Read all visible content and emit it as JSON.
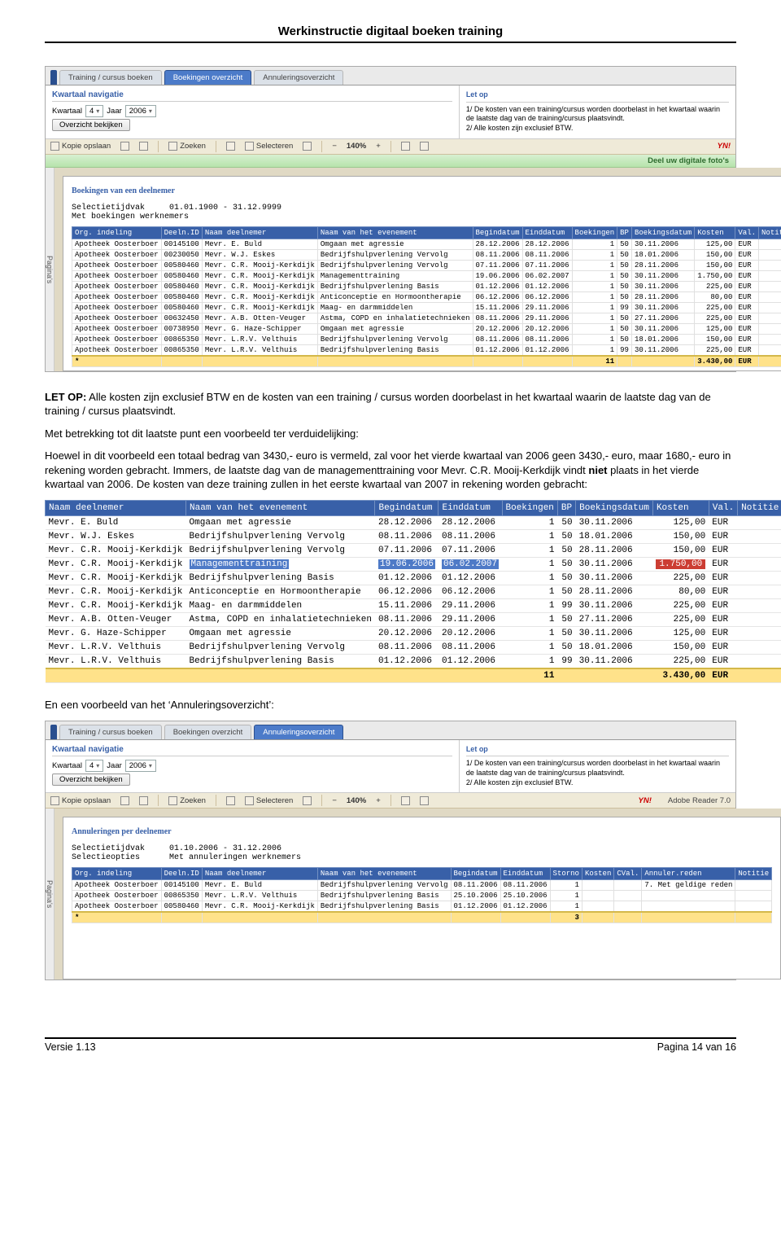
{
  "doc": {
    "title": "Werkinstructie digitaal boeken training",
    "version_label": "Versie 1.13",
    "page_label": "Pagina 14 van 16"
  },
  "app_top": {
    "tabs": [
      "Training / cursus boeken",
      "Boekingen overzicht",
      "Annuleringsoverzicht"
    ],
    "active_index": 1,
    "nav": {
      "heading": "Kwartaal navigatie",
      "kwartaal_label": "Kwartaal",
      "kwartaal_val": "4",
      "jaar_label": "Jaar",
      "jaar_val": "2006",
      "button": "Overzicht bekijken"
    },
    "notice": {
      "heading": "Let op",
      "line1": "1/ De kosten van een training/cursus worden doorbelast in het kwartaal waarin de laatste dag van de training/cursus plaatsvindt.",
      "line2": "2/ Alle kosten zijn exclusief BTW."
    },
    "toolbar": {
      "save": "Kopie opslaan",
      "search": "Zoeken",
      "select": "Selecteren",
      "zoom": "140%",
      "yn": "YN!",
      "share": "Deel uw digitale foto's"
    },
    "sidetab": "Pagina's",
    "report": {
      "title": "Boekingen van een deelnemer",
      "row1_label": "Selectietijdvak",
      "row1_val": "01.01.1900 - 31.12.9999",
      "row2": "Met boekingen werknemers",
      "columns": [
        "Org. indeling",
        "Deeln.ID",
        "Naam deelnemer",
        "Naam van het evenement",
        "Begindatum",
        "Einddatum",
        "Boekingen",
        "BP",
        "Boekingsdatum",
        "Kosten",
        "Val.",
        "Notitie"
      ],
      "rows": [
        [
          "Apotheek Oosterboer",
          "00145100",
          "Mevr. E. Buld",
          "Omgaan met agressie",
          "28.12.2006",
          "28.12.2006",
          "1",
          "50",
          "30.11.2006",
          "125,00",
          "EUR",
          ""
        ],
        [
          "Apotheek Oosterboer",
          "00230050",
          "Mevr. W.J. Eskes",
          "Bedrijfshulpverlening Vervolg",
          "08.11.2006",
          "08.11.2006",
          "1",
          "50",
          "18.01.2006",
          "150,00",
          "EUR",
          ""
        ],
        [
          "Apotheek Oosterboer",
          "00580460",
          "Mevr. C.R. Mooij-Kerkdijk",
          "Bedrijfshulpverlening Vervolg",
          "07.11.2006",
          "07.11.2006",
          "1",
          "50",
          "28.11.2006",
          "150,00",
          "EUR",
          ""
        ],
        [
          "Apotheek Oosterboer",
          "00580460",
          "Mevr. C.R. Mooij-Kerkdijk",
          "Managementtraining",
          "19.06.2006",
          "06.02.2007",
          "1",
          "50",
          "30.11.2006",
          "1.750,00",
          "EUR",
          ""
        ],
        [
          "Apotheek Oosterboer",
          "00580460",
          "Mevr. C.R. Mooij-Kerkdijk",
          "Bedrijfshulpverlening Basis",
          "01.12.2006",
          "01.12.2006",
          "1",
          "50",
          "30.11.2006",
          "225,00",
          "EUR",
          ""
        ],
        [
          "Apotheek Oosterboer",
          "00580460",
          "Mevr. C.R. Mooij-Kerkdijk",
          "Anticonceptie en Hormoontherapie",
          "06.12.2006",
          "06.12.2006",
          "1",
          "50",
          "28.11.2006",
          "80,00",
          "EUR",
          ""
        ],
        [
          "Apotheek Oosterboer",
          "00580460",
          "Mevr. C.R. Mooij-Kerkdijk",
          "Maag- en darmmiddelen",
          "15.11.2006",
          "29.11.2006",
          "1",
          "99",
          "30.11.2006",
          "225,00",
          "EUR",
          ""
        ],
        [
          "Apotheek Oosterboer",
          "00632450",
          "Mevr. A.B. Otten-Veuger",
          "Astma, COPD en inhalatietechnieken",
          "08.11.2006",
          "29.11.2006",
          "1",
          "50",
          "27.11.2006",
          "225,00",
          "EUR",
          ""
        ],
        [
          "Apotheek Oosterboer",
          "00738950",
          "Mevr. G. Haze-Schipper",
          "Omgaan met agressie",
          "20.12.2006",
          "20.12.2006",
          "1",
          "50",
          "30.11.2006",
          "125,00",
          "EUR",
          ""
        ],
        [
          "Apotheek Oosterboer",
          "00865350",
          "Mevr. L.R.V. Velthuis",
          "Bedrijfshulpverlening Vervolg",
          "08.11.2006",
          "08.11.2006",
          "1",
          "50",
          "18.01.2006",
          "150,00",
          "EUR",
          ""
        ],
        [
          "Apotheek Oosterboer",
          "00865350",
          "Mevr. L.R.V. Velthuis",
          "Bedrijfshulpverlening Basis",
          "01.12.2006",
          "01.12.2006",
          "1",
          "99",
          "30.11.2006",
          "225,00",
          "EUR",
          ""
        ]
      ],
      "total_bookings": "11",
      "total_cost": "3.430,00",
      "total_val": "EUR"
    }
  },
  "para1": {
    "lead": "LET OP:",
    "text": " Alle kosten zijn exclusief BTW en de kosten van een training / cursus worden doorbelast in het kwartaal waarin de laatste dag van de training / cursus plaatsvindt."
  },
  "para2": "Met betrekking tot dit laatste punt een voorbeeld ter verduidelijking:",
  "para3_a": "Hoewel in dit voorbeeld een totaal bedrag van 3430,- euro is vermeld, zal voor het vierde kwartaal van 2006 geen 3430,- euro, maar 1680,- euro in rekening worden gebracht. Immers, de laatste dag van de managementtraining voor Mevr. C.R. Mooij-Kerkdijk vindt ",
  "para3_b": "niet",
  "para3_c": " plaats in het vierde kwartaal van 2006. De kosten van deze training zullen in het eerste kwartaal van 2007 in rekening worden gebracht:",
  "bigtable": {
    "columns": [
      "Naam deelnemer",
      "Naam van het evenement",
      "Begindatum",
      "Einddatum",
      "Boekingen",
      "BP",
      "Boekingsdatum",
      "Kosten",
      "Val.",
      "Notitie"
    ],
    "rows": [
      {
        "c": [
          "Mevr. E. Buld",
          "Omgaan met agressie",
          "28.12.2006",
          "28.12.2006",
          "1",
          "50",
          "30.11.2006",
          "125,00",
          "EUR",
          ""
        ],
        "hl": false
      },
      {
        "c": [
          "Mevr. W.J. Eskes",
          "Bedrijfshulpverlening Vervolg",
          "08.11.2006",
          "08.11.2006",
          "1",
          "50",
          "18.01.2006",
          "150,00",
          "EUR",
          ""
        ],
        "hl": false
      },
      {
        "c": [
          "Mevr. C.R. Mooij-Kerkdijk",
          "Bedrijfshulpverlening Vervolg",
          "07.11.2006",
          "07.11.2006",
          "1",
          "50",
          "28.11.2006",
          "150,00",
          "EUR",
          ""
        ],
        "hl": false
      },
      {
        "c": [
          "Mevr. C.R. Mooij-Kerkdijk",
          "Managementtraining",
          "19.06.2006",
          "06.02.2007",
          "1",
          "50",
          "30.11.2006",
          "1.750,00",
          "EUR",
          ""
        ],
        "hl": true
      },
      {
        "c": [
          "Mevr. C.R. Mooij-Kerkdijk",
          "Bedrijfshulpverlening Basis",
          "01.12.2006",
          "01.12.2006",
          "1",
          "50",
          "30.11.2006",
          "225,00",
          "EUR",
          ""
        ],
        "hl": false
      },
      {
        "c": [
          "Mevr. C.R. Mooij-Kerkdijk",
          "Anticonceptie en Hormoontherapie",
          "06.12.2006",
          "06.12.2006",
          "1",
          "50",
          "28.11.2006",
          "80,00",
          "EUR",
          ""
        ],
        "hl": false
      },
      {
        "c": [
          "Mevr. C.R. Mooij-Kerkdijk",
          "Maag- en darmmiddelen",
          "15.11.2006",
          "29.11.2006",
          "1",
          "99",
          "30.11.2006",
          "225,00",
          "EUR",
          ""
        ],
        "hl": false
      },
      {
        "c": [
          "Mevr. A.B. Otten-Veuger",
          "Astma, COPD en inhalatietechnieken",
          "08.11.2006",
          "29.11.2006",
          "1",
          "50",
          "27.11.2006",
          "225,00",
          "EUR",
          ""
        ],
        "hl": false
      },
      {
        "c": [
          "Mevr. G. Haze-Schipper",
          "Omgaan met agressie",
          "20.12.2006",
          "20.12.2006",
          "1",
          "50",
          "30.11.2006",
          "125,00",
          "EUR",
          ""
        ],
        "hl": false
      },
      {
        "c": [
          "Mevr. L.R.V. Velthuis",
          "Bedrijfshulpverlening Vervolg",
          "08.11.2006",
          "08.11.2006",
          "1",
          "50",
          "18.01.2006",
          "150,00",
          "EUR",
          ""
        ],
        "hl": false
      },
      {
        "c": [
          "Mevr. L.R.V. Velthuis",
          "Bedrijfshulpverlening Basis",
          "01.12.2006",
          "01.12.2006",
          "1",
          "99",
          "30.11.2006",
          "225,00",
          "EUR",
          ""
        ],
        "hl": false
      }
    ],
    "total_bookings": "11",
    "total_cost": "3.430,00",
    "total_val": "EUR"
  },
  "para4": "En een voorbeeld van het ‘Annuleringsoverzicht’:",
  "app_bot": {
    "active_index": 2,
    "adobe": "Adobe Reader 7.0",
    "report": {
      "title": "Annuleringen per deelnemer",
      "row1_label": "Selectietijdvak",
      "row1_val": "01.10.2006 - 31.12.2006",
      "row2_label": "Selectieopties",
      "row2_val": "Met annuleringen werknemers",
      "columns": [
        "Org. indeling",
        "Deeln.ID",
        "Naam deelnemer",
        "Naam van het evenement",
        "Begindatum",
        "Einddatum",
        "Storno",
        "Kosten",
        "CVal.",
        "Annuler.reden",
        "Notitie"
      ],
      "rows": [
        [
          "Apotheek Oosterboer",
          "00145100",
          "Mevr. E. Buld",
          "Bedrijfshulpverlening Vervolg",
          "08.11.2006",
          "08.11.2006",
          "1",
          "",
          "",
          "7. Met geldige reden",
          ""
        ],
        [
          "Apotheek Oosterboer",
          "00865350",
          "Mevr. L.R.V. Velthuis",
          "Bedrijfshulpverlening Basis",
          "25.10.2006",
          "25.10.2006",
          "1",
          "",
          "",
          "",
          ""
        ],
        [
          "Apotheek Oosterboer",
          "00580460",
          "Mevr. C.R. Mooij-Kerkdijk",
          "Bedrijfshulpverlening Basis",
          "01.12.2006",
          "01.12.2006",
          "1",
          "",
          "",
          "",
          ""
        ]
      ],
      "total_storno": "3"
    }
  },
  "style": {
    "num_cols_top": [
      6,
      7,
      9
    ],
    "num_cols_big": [
      4,
      5,
      7
    ],
    "num_cols_bot": [
      6,
      7
    ]
  }
}
